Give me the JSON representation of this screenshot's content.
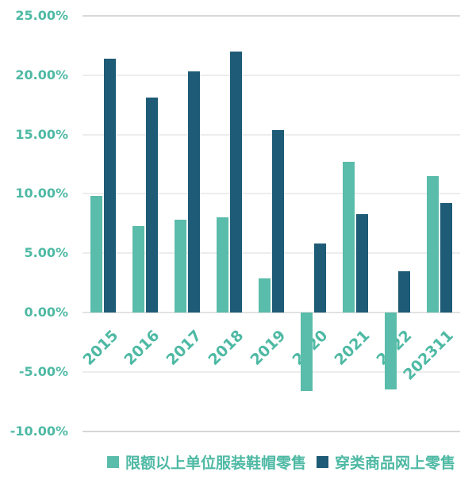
{
  "chart_data": {
    "type": "bar",
    "title": "",
    "xlabel": "",
    "ylabel": "",
    "categories": [
      "2015",
      "2016",
      "2017",
      "2018",
      "2019",
      "2020",
      "2021",
      "2022",
      "202311"
    ],
    "series": [
      {
        "name": "限额以上单位服装鞋帽零售",
        "color": "#5abcaa",
        "values": [
          9.8,
          7.3,
          7.8,
          8.0,
          2.9,
          -6.6,
          12.7,
          -6.5,
          11.5
        ]
      },
      {
        "name": "穿类商品网上零售",
        "color": "#1e5b76",
        "values": [
          21.4,
          18.1,
          20.3,
          22.0,
          15.4,
          5.8,
          8.3,
          3.5,
          9.2
        ]
      }
    ],
    "yticks": [
      {
        "label": "25.00%",
        "value": 25
      },
      {
        "label": "20.00%",
        "value": 20
      },
      {
        "label": "15.00%",
        "value": 15
      },
      {
        "label": "10.00%",
        "value": 10
      },
      {
        "label": "5.00%",
        "value": 5
      },
      {
        "label": "0.00%",
        "value": 0
      },
      {
        "label": "-5.00%",
        "value": -5
      },
      {
        "label": "-10.00%",
        "value": -10
      }
    ],
    "ylim": [
      -10,
      25
    ],
    "grid": true,
    "legend_position": "bottom",
    "colors": {
      "axis_text": "#4eb9a4",
      "gridline_top": "#d9d9d9",
      "gridline_mid": "#ededed",
      "gridline_zero": "#e2e2e2",
      "gridline_bottom": "#d6d6d6"
    }
  }
}
